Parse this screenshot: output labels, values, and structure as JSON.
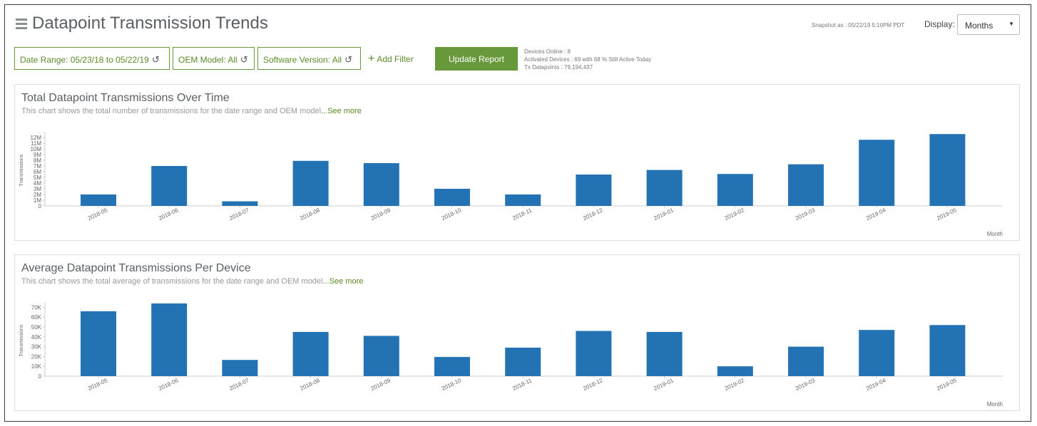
{
  "header": {
    "title": "Datapoint Transmission Trends",
    "snapshot": "Snapshot as : 05/22/19 5:10PM PDT",
    "display_label": "Display:",
    "display_value": "Months"
  },
  "filters": {
    "date_range": "Date Range: 05/23/18 to 05/22/19",
    "oem_model": "OEM Model: All",
    "software_version": "Software Version: All",
    "add_filter": "Add Filter",
    "refresh_icon": "↺"
  },
  "update_button": "Update Report",
  "stats": {
    "devices_online": "Devices Online : 8",
    "activated_devices": "Activated Devices : 69 with 68 % Still Active Today",
    "tx_datapoints": "Tx Datapoints : 79,194,437"
  },
  "panels": [
    {
      "title": "Total Datapoint Transmissions Over Time",
      "desc": "This chart shows the total number of transmissions for the date range and OEM model",
      "see_more": "...See more"
    },
    {
      "title": "Average Datapoint Transmissions Per Device",
      "desc": "This chart shows the total average of transmissions for the date range and OEM model",
      "see_more": "...See more"
    }
  ],
  "colors": {
    "bar": "#2272b4",
    "accent": "#67993a"
  },
  "chart_data": [
    {
      "type": "bar",
      "categories": [
        "2018-05",
        "2018-06",
        "2018-07",
        "2018-08",
        "2018-09",
        "2018-10",
        "2018-11",
        "2018-12",
        "2019-01",
        "2019-02",
        "2019-03",
        "2019-04",
        "2019-05"
      ],
      "values": [
        2000000,
        7000000,
        800000,
        7900000,
        7500000,
        3000000,
        2000000,
        5500000,
        6300000,
        5600000,
        7300000,
        11600000,
        12600000
      ],
      "ylabel": "Transmissions",
      "xlabel": "Month",
      "ylim": [
        0,
        12500000
      ],
      "yticks": [
        0,
        1000000,
        2000000,
        3000000,
        4000000,
        5000000,
        6000000,
        7000000,
        8000000,
        9000000,
        10000000,
        11000000,
        12000000
      ],
      "ytick_labels": [
        "0",
        "1M",
        "2M",
        "3M",
        "4M",
        "5M",
        "6M",
        "7M",
        "8M",
        "9M",
        "10M",
        "11M",
        "12M"
      ],
      "grid": false
    },
    {
      "type": "bar",
      "categories": [
        "2018-05",
        "2018-06",
        "2018-07",
        "2018-08",
        "2018-09",
        "2018-10",
        "2018-11",
        "2018-12",
        "2019-01",
        "2019-02",
        "2019-03",
        "2019-04",
        "2019-05"
      ],
      "values": [
        66000,
        74000,
        16500,
        45000,
        41000,
        19500,
        29000,
        46000,
        45000,
        10000,
        30000,
        47000,
        52000
      ],
      "ylabel": "Transmissions",
      "xlabel": "Month",
      "ylim": [
        0,
        72500
      ],
      "yticks": [
        0,
        10000,
        20000,
        30000,
        40000,
        50000,
        60000,
        70000
      ],
      "ytick_labels": [
        "0",
        "10K",
        "20K",
        "30K",
        "40K",
        "50K",
        "60K",
        "70K"
      ],
      "grid": false
    }
  ]
}
